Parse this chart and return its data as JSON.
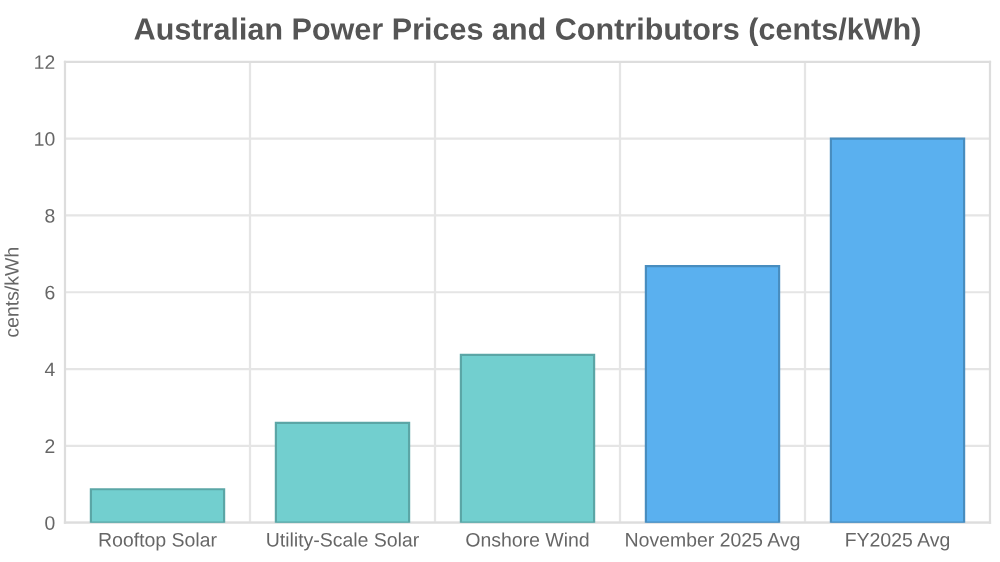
{
  "chart_data": {
    "type": "bar",
    "title": "Australian Power Prices and Contributors (cents/kWh)",
    "ylabel": "cents/kWh",
    "categories": [
      "Rooftop Solar",
      "Utility-Scale Solar",
      "Onshore Wind",
      "November 2025 Avg",
      "FY2025 Avg"
    ],
    "values": [
      0.87,
      2.6,
      4.37,
      6.68,
      10.0
    ],
    "colors": [
      "#72cfcf",
      "#72cfcf",
      "#72cfcf",
      "#5ab0ef",
      "#5ab0ef"
    ],
    "ylim": [
      0,
      12
    ],
    "yticks": [
      0,
      2,
      4,
      6,
      8,
      10,
      12
    ],
    "grid": true
  }
}
